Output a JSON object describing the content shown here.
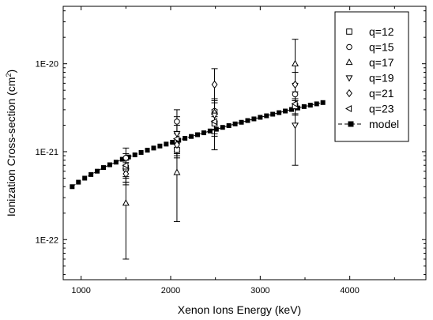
{
  "chart_data": {
    "type": "scatter",
    "xlabel": "Xenon Ions Energy (keV)",
    "ylabel_main": "Ionization Cross-section (cm",
    "ylabel_sup": "2",
    "ylabel_close": ")",
    "xlim": [
      800,
      4850
    ],
    "ylim": [
      3.5e-23,
      4.5e-20
    ],
    "yscale": "log",
    "xticks": [
      1000,
      2000,
      3000,
      4000
    ],
    "xtick_labels": [
      "1000",
      "2000",
      "3000",
      "4000"
    ],
    "yticks": [
      1e-22,
      1e-21,
      1e-20
    ],
    "ytick_labels": [
      "1E-22",
      "1E-21",
      "1E-20"
    ],
    "legend_position": "top-right",
    "series": [
      {
        "name": "q=12",
        "marker": "square",
        "points": [
          {
            "x": 1500,
            "y": 6.5e-22,
            "ylo": 5e-22,
            "yhi": 8e-22
          },
          {
            "x": 2070,
            "y": 1.05e-21,
            "ylo": 9e-22,
            "yhi": 1.25e-21
          },
          {
            "x": 2490,
            "y": 2.1e-21,
            "ylo": 1.8e-21,
            "yhi": 2.5e-21
          },
          {
            "x": 3390,
            "y": 3.3e-21,
            "ylo": 2.7e-21,
            "yhi": 3.8e-21
          }
        ]
      },
      {
        "name": "q=15",
        "marker": "circle",
        "points": [
          {
            "x": 1500,
            "y": 8.5e-22,
            "ylo": 6.5e-22,
            "yhi": 1.1e-21
          },
          {
            "x": 2070,
            "y": 2.2e-21,
            "ylo": 1.6e-21,
            "yhi": 3e-21
          },
          {
            "x": 2490,
            "y": 2.9e-21,
            "ylo": 2.2e-21,
            "yhi": 3.8e-21
          },
          {
            "x": 3390,
            "y": 4.5e-21,
            "ylo": 3.3e-21,
            "yhi": 6e-21
          }
        ]
      },
      {
        "name": "q=17",
        "marker": "triangle-up",
        "points": [
          {
            "x": 1500,
            "y": 2.6e-22,
            "ylo": 6e-23,
            "yhi": 4.5e-22
          },
          {
            "x": 2070,
            "y": 5.8e-22,
            "ylo": 1.6e-22,
            "yhi": 1.1e-21
          },
          {
            "x": 2490,
            "y": 2.8e-21,
            "ylo": 1.5e-21,
            "yhi": 4e-21
          },
          {
            "x": 3390,
            "y": 1e-20,
            "ylo": 4e-21,
            "yhi": 1.9e-20
          }
        ]
      },
      {
        "name": "q=19",
        "marker": "triangle-down",
        "points": [
          {
            "x": 1500,
            "y": 6e-22,
            "ylo": 4.5e-22,
            "yhi": 8e-22
          },
          {
            "x": 2070,
            "y": 1.6e-21,
            "ylo": 1e-21,
            "yhi": 2.5e-21
          },
          {
            "x": 2490,
            "y": 2.6e-21,
            "ylo": 1.8e-21,
            "yhi": 3.6e-21
          },
          {
            "x": 3390,
            "y": 2e-21,
            "ylo": 7e-22,
            "yhi": 3.5e-21
          }
        ]
      },
      {
        "name": "q=21",
        "marker": "diamond",
        "points": [
          {
            "x": 1500,
            "y": 5.6e-22,
            "ylo": 4.2e-22,
            "yhi": 7.5e-22
          },
          {
            "x": 2070,
            "y": 1.2e-21,
            "ylo": 8.5e-22,
            "yhi": 1.7e-21
          },
          {
            "x": 2490,
            "y": 5.8e-21,
            "ylo": 1.05e-21,
            "yhi": 8.8e-21
          },
          {
            "x": 3390,
            "y": 5.8e-21,
            "ylo": 3.8e-21,
            "yhi": 8e-21
          }
        ]
      },
      {
        "name": "q=23",
        "marker": "triangle-left",
        "points": [
          {
            "x": 1500,
            "y": 7e-22,
            "ylo": 5.2e-22,
            "yhi": 9.5e-22
          },
          {
            "x": 2070,
            "y": 1.4e-21,
            "ylo": 9.5e-22,
            "yhi": 2e-21
          },
          {
            "x": 2490,
            "y": 2.2e-21,
            "ylo": 1.6e-21,
            "yhi": 3e-21
          },
          {
            "x": 3390,
            "y": 3.5e-21,
            "ylo": 2.6e-21,
            "yhi": 4.8e-21
          }
        ]
      }
    ],
    "model": {
      "name": "model",
      "marker": "filled-square",
      "x": [
        900,
        970,
        1040,
        1110,
        1180,
        1250,
        1320,
        1390,
        1460,
        1530,
        1600,
        1670,
        1740,
        1810,
        1880,
        1950,
        2020,
        2090,
        2160,
        2230,
        2300,
        2370,
        2440,
        2510,
        2580,
        2650,
        2720,
        2790,
        2860,
        2930,
        3000,
        3070,
        3140,
        3210,
        3280,
        3350,
        3420,
        3490,
        3560,
        3630,
        3700
      ],
      "y": [
        4e-22,
        4.5e-22,
        5e-22,
        5.5e-22,
        6e-22,
        6.6e-22,
        7.1e-22,
        7.6e-22,
        8.2e-22,
        8.7e-22,
        9.2e-22,
        9.8e-22,
        1.04e-21,
        1.1e-21,
        1.16e-21,
        1.22e-21,
        1.28e-21,
        1.35e-21,
        1.42e-21,
        1.49e-21,
        1.56e-21,
        1.64e-21,
        1.72e-21,
        1.8e-21,
        1.89e-21,
        1.98e-21,
        2.07e-21,
        2.16e-21,
        2.26e-21,
        2.36e-21,
        2.46e-21,
        2.56e-21,
        2.67e-21,
        2.78e-21,
        2.9e-21,
        3.02e-21,
        3.14e-21,
        3.26e-21,
        3.38e-21,
        3.5e-21,
        3.62e-21
      ]
    }
  }
}
